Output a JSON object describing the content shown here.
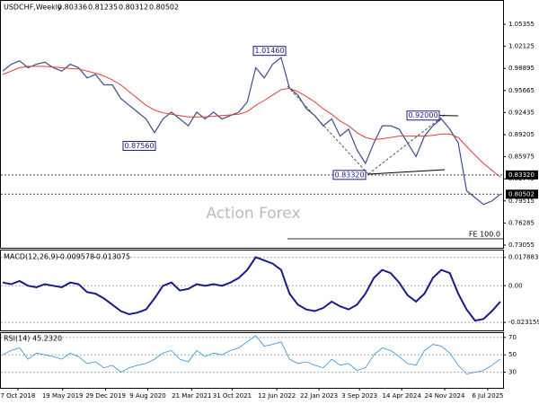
{
  "chart_data": {
    "type": "line",
    "title": "USDCHF,Weekly",
    "ohlc": [
      0.80336,
      0.81235,
      0.80312,
      0.80502
    ],
    "watermark": "Action Forex",
    "fe_label": "FE 100.0",
    "xlim": [
      0,
      59
    ],
    "xticks": [
      {
        "value": 1.8,
        "label": "7 Oct 2018"
      },
      {
        "value": 7.1,
        "label": "19 May 2019"
      },
      {
        "value": 12.2,
        "label": "29 Dec 2019"
      },
      {
        "value": 17.2,
        "label": "9 Aug 2020"
      },
      {
        "value": 22.4,
        "label": "21 Mar 2021"
      },
      {
        "value": 27.2,
        "label": "31 Oct 2021"
      },
      {
        "value": 32.5,
        "label": "12 Jun 2022"
      },
      {
        "value": 37.5,
        "label": "22 Jan 2023"
      },
      {
        "value": 42.3,
        "label": "3 Sep 2023"
      },
      {
        "value": 47.3,
        "label": "14 Apr 2024"
      },
      {
        "value": 52.4,
        "label": "24 Nov 2024"
      },
      {
        "value": 57.5,
        "label": "6 Jul 2025"
      }
    ],
    "ylim": [
      0.7266,
      1.0864
    ],
    "yticks": [
      1.05355,
      1.02125,
      0.98895,
      0.95665,
      0.92435,
      0.89205,
      0.85975,
      0.82745,
      0.79515,
      0.76285,
      0.73055
    ],
    "price_labels": [
      {
        "value": 0.8332,
        "label": "0.83320"
      },
      {
        "value": 0.80502,
        "label": "0.80502"
      }
    ],
    "annotations": [
      {
        "value": 1.0146,
        "label": "1.01460"
      },
      {
        "value": 0.8756,
        "label": "0.87560"
      },
      {
        "value": 0.8332,
        "label": "0.83320"
      },
      {
        "value": 0.92,
        "label": "0.92000"
      }
    ],
    "series": [
      {
        "color": "#3a4f8c",
        "values": [
          0.985,
          0.995,
          1.0,
          0.99,
          0.995,
          0.998,
          0.99,
          0.985,
          0.995,
          0.99,
          0.975,
          0.98,
          0.965,
          0.965,
          0.945,
          0.935,
          0.925,
          0.915,
          0.895,
          0.915,
          0.925,
          0.915,
          0.905,
          0.925,
          0.915,
          0.925,
          0.915,
          0.92,
          0.925,
          0.94,
          0.99,
          0.975,
          0.995,
          1.005,
          0.96,
          0.95,
          0.93,
          0.92,
          0.905,
          0.915,
          0.89,
          0.9,
          0.87,
          0.85,
          0.88,
          0.905,
          0.905,
          0.9,
          0.88,
          0.86,
          0.89,
          0.905,
          0.915,
          0.9,
          0.88,
          0.81,
          0.8,
          0.79,
          0.795,
          0.805
        ]
      },
      {
        "color": "#e03c3c",
        "values": [
          0.98,
          0.985,
          0.99,
          0.992,
          0.992,
          0.992,
          0.991,
          0.99,
          0.989,
          0.988,
          0.985,
          0.982,
          0.978,
          0.972,
          0.965,
          0.955,
          0.945,
          0.935,
          0.928,
          0.924,
          0.922,
          0.92,
          0.918,
          0.918,
          0.918,
          0.919,
          0.92,
          0.921,
          0.922,
          0.926,
          0.935,
          0.942,
          0.95,
          0.958,
          0.96,
          0.955,
          0.948,
          0.94,
          0.93,
          0.922,
          0.912,
          0.905,
          0.895,
          0.888,
          0.885,
          0.886,
          0.888,
          0.89,
          0.89,
          0.89,
          0.89,
          0.891,
          0.893,
          0.893,
          0.888,
          0.875,
          0.862,
          0.85,
          0.84,
          0.83
        ]
      }
    ],
    "macd": {
      "label": "MACD(12,26,9)",
      "readings": [
        -0.009578,
        -0.013075
      ],
      "color": "#1a1a8c",
      "ylim": [
        -0.0282,
        0.0217
      ],
      "yticks": [
        0.017883,
        {
          "value": 0,
          "label": "0.00"
        },
        -0.023159
      ],
      "values": [
        0.002,
        0.001,
        0.003,
        0.0,
        -0.001,
        0.001,
        0.0,
        -0.001,
        0.002,
        0.001,
        -0.004,
        -0.005,
        -0.008,
        -0.012,
        -0.016,
        -0.018,
        -0.017,
        -0.015,
        -0.008,
        0.0,
        0.002,
        -0.003,
        -0.002,
        0.001,
        0.0,
        0.001,
        0.0,
        0.002,
        0.005,
        0.01,
        0.018,
        0.016,
        0.014,
        0.01,
        -0.005,
        -0.012,
        -0.015,
        -0.016,
        -0.014,
        -0.01,
        -0.013,
        -0.015,
        -0.012,
        -0.005,
        0.005,
        0.01,
        0.008,
        0.002,
        -0.006,
        -0.01,
        -0.005,
        0.005,
        0.01,
        0.008,
        -0.005,
        -0.015,
        -0.022,
        -0.021,
        -0.016,
        -0.01
      ]
    },
    "rsi": {
      "label": "RSI(14)",
      "reading": {
        "value": 45.232,
        "label": "45.2320"
      },
      "color": "#2f8fe0",
      "ylim": [
        12,
        74
      ],
      "yticks": [
        70,
        50,
        30
      ],
      "values": [
        50,
        55,
        58,
        45,
        52,
        50,
        48,
        45,
        52,
        48,
        40,
        42,
        35,
        38,
        30,
        35,
        38,
        40,
        45,
        52,
        55,
        45,
        42,
        55,
        48,
        52,
        50,
        55,
        58,
        65,
        72,
        60,
        62,
        65,
        45,
        40,
        42,
        38,
        35,
        45,
        38,
        40,
        32,
        35,
        50,
        58,
        55,
        48,
        40,
        38,
        55,
        62,
        60,
        52,
        38,
        28,
        30,
        32,
        38,
        45.232
      ]
    }
  }
}
